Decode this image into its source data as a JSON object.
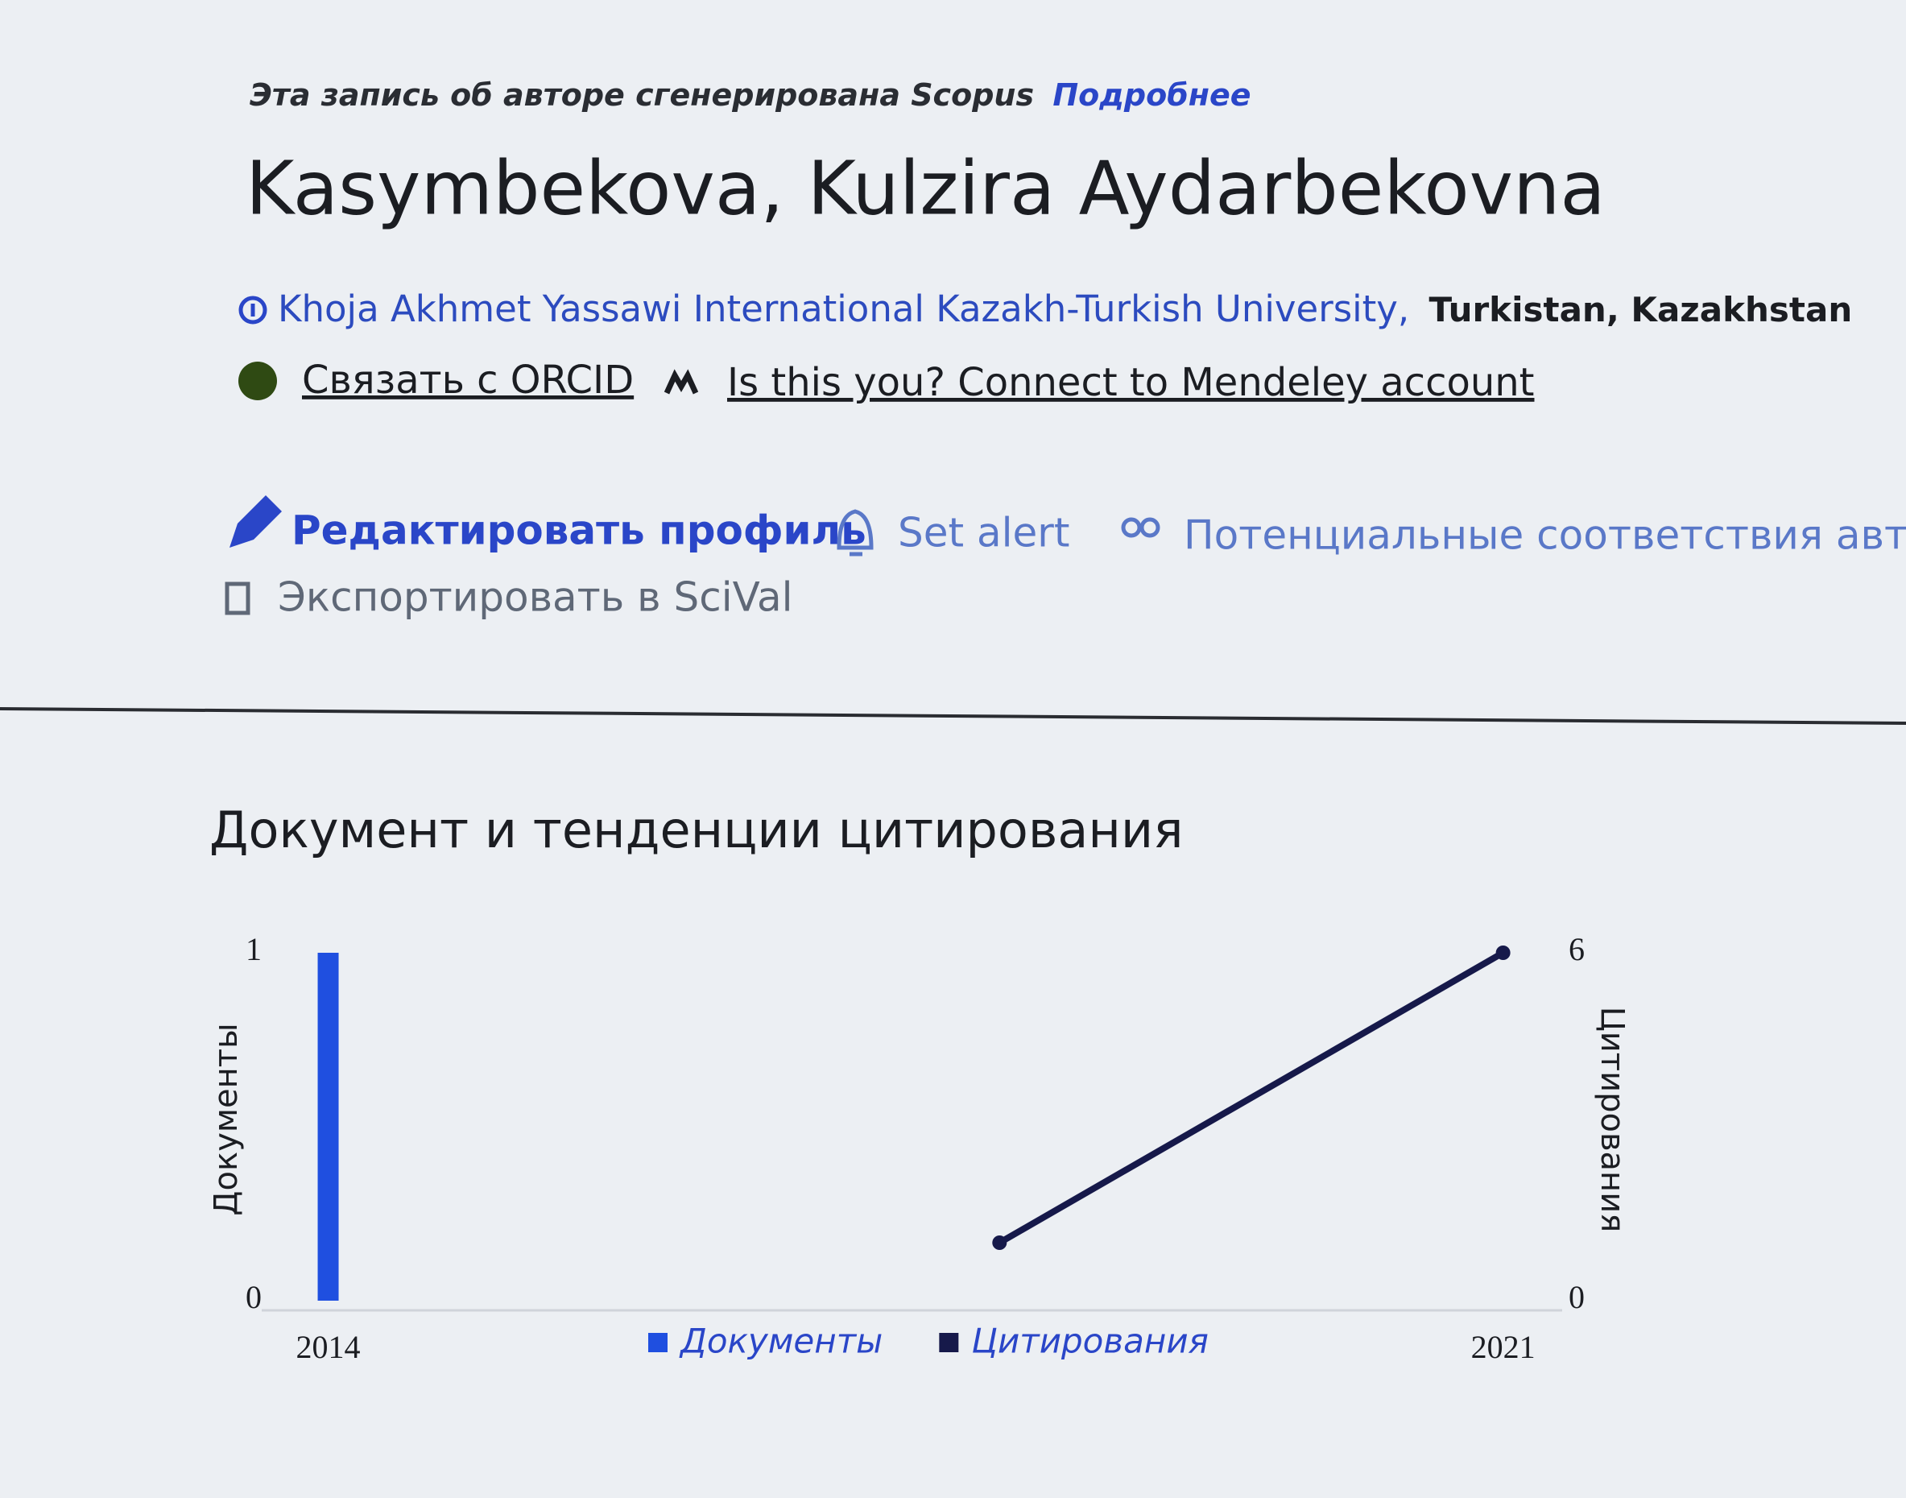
{
  "notice": {
    "text": "Эта запись об авторе сгенерирована Scopus",
    "link": "Подробнее"
  },
  "name": "Kasymbekova, Kulzira Aydarbekovna",
  "affiliation": {
    "institution": "Khoja Akhmet Yassawi International Kazakh-Turkish University,",
    "location": "Turkistan, Kazakhstan"
  },
  "links": [
    "Связать с ORCID",
    "Is this you? Connect to Mendeley account"
  ],
  "actions": [
    "Редактировать профиль",
    "Set alert",
    "Потенциальные соответствия автора",
    "Экспортировать в SciVal"
  ],
  "section_title": "Документ и тенденции цитирования",
  "chart_data": {
    "type": "bar",
    "ylabel": "Документы",
    "y2label": "Цитирования",
    "xlim": [
      2013.7,
      2021.4
    ],
    "xticks": [
      2014,
      2021
    ],
    "ylim": [
      0,
      1
    ],
    "yticks": [
      0,
      1
    ],
    "y2lim": [
      0,
      6
    ],
    "y2ticks": [
      0,
      6
    ],
    "series": [
      {
        "name": "Документы",
        "color": "#1f4fe0",
        "type": "bar",
        "x": [
          2014
        ],
        "values": [
          1
        ]
      },
      {
        "name": "Цитирования",
        "color": "#16194a",
        "type": "line",
        "axis": "y2",
        "x": [
          2018,
          2021
        ],
        "values": [
          1,
          6
        ]
      }
    ]
  }
}
